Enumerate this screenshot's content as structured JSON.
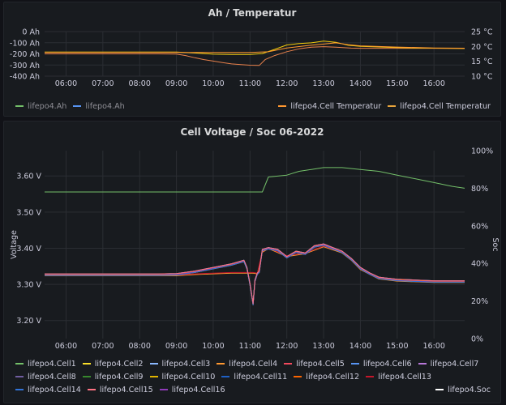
{
  "chart_data": [
    {
      "type": "line",
      "title": "Ah / Temperatur",
      "x_ticks": [
        "06:00",
        "07:00",
        "08:00",
        "09:00",
        "10:00",
        "11:00",
        "12:00",
        "13:00",
        "14:00",
        "15:00",
        "16:00"
      ],
      "x_range": [
        "05:25",
        "16:50"
      ],
      "y_left": {
        "ticks": [
          "0 Ah",
          "-100 Ah",
          "-200 Ah",
          "-300 Ah",
          "-400 Ah"
        ],
        "range": [
          -400,
          0
        ]
      },
      "y_right": {
        "ticks": [
          "25 °C",
          "20 °C",
          "15 °C",
          "10 °C"
        ],
        "range": [
          10,
          25
        ]
      },
      "series": [
        {
          "name": "lifepo4.Ah",
          "axis": "left",
          "color": "#e8814b",
          "points": [
            [
              "05:25",
              -200
            ],
            [
              "08:30",
              -200
            ],
            [
              "09:00",
              -202
            ],
            [
              "09:15",
              -215
            ],
            [
              "09:30",
              -235
            ],
            [
              "09:45",
              -252
            ],
            [
              "10:00",
              -265
            ],
            [
              "10:15",
              -278
            ],
            [
              "10:30",
              -290
            ],
            [
              "10:45",
              -297
            ],
            [
              "11:00",
              -302
            ],
            [
              "11:15",
              -304
            ],
            [
              "11:25",
              -250
            ],
            [
              "11:40",
              -215
            ],
            [
              "12:00",
              -180
            ],
            [
              "12:20",
              -155
            ],
            [
              "12:40",
              -140
            ],
            [
              "13:00",
              -135
            ],
            [
              "13:20",
              -140
            ],
            [
              "13:45",
              -148
            ],
            [
              "14:00",
              -150
            ],
            [
              "15:00",
              -150
            ],
            [
              "16:00",
              -150
            ],
            [
              "16:50",
              -150
            ]
          ]
        },
        {
          "name": "lifepo4.Cell Temperatur",
          "axis": "right",
          "color": "#f2cc0c",
          "points": [
            [
              "05:25",
              18.1
            ],
            [
              "09:00",
              18.1
            ],
            [
              "09:30",
              17.8
            ],
            [
              "10:00",
              17.4
            ],
            [
              "10:30",
              17.3
            ],
            [
              "11:00",
              17.3
            ],
            [
              "11:20",
              17.6
            ],
            [
              "11:40",
              19.0
            ],
            [
              "12:00",
              20.5
            ],
            [
              "12:20",
              21.0
            ],
            [
              "12:40",
              21.2
            ],
            [
              "13:00",
              21.8
            ],
            [
              "13:20",
              21.4
            ],
            [
              "13:40",
              20.4
            ],
            [
              "14:00",
              20.0
            ],
            [
              "15:00",
              19.6
            ],
            [
              "16:00",
              19.4
            ],
            [
              "16:50",
              19.3
            ]
          ]
        },
        {
          "name": "lifepo4.Cell Temperatur",
          "axis": "right",
          "color": "#ff9830",
          "points": [
            [
              "05:25",
              18.0
            ],
            [
              "11:00",
              18.0
            ],
            [
              "11:30",
              18.2
            ],
            [
              "12:00",
              19.5
            ],
            [
              "12:30",
              20.2
            ],
            [
              "13:00",
              20.8
            ],
            [
              "13:20",
              21.2
            ],
            [
              "13:40",
              20.6
            ],
            [
              "14:00",
              20.2
            ],
            [
              "15:00",
              19.8
            ],
            [
              "16:00",
              19.5
            ],
            [
              "16:50",
              19.4
            ]
          ]
        }
      ],
      "legend": [
        {
          "label": "lifepo4.Ah",
          "color": "#73bf69",
          "dim": true
        },
        {
          "label": "lifepo4.Ah",
          "color": "#5794f2",
          "dim": true
        },
        {
          "label": "lifepo4.Cell Temperatur",
          "color": "#ff9830",
          "dim": false
        },
        {
          "label": "lifepo4.Cell Temperatur",
          "color": "#e8a53c",
          "dim": false
        }
      ]
    },
    {
      "type": "line",
      "title": "Cell Voltage / Soc 06-2022",
      "x_ticks": [
        "06:00",
        "07:00",
        "08:00",
        "09:00",
        "10:00",
        "11:00",
        "12:00",
        "13:00",
        "14:00",
        "15:00",
        "16:00"
      ],
      "x_range": [
        "05:25",
        "16:50"
      ],
      "y_left": {
        "label": "Voltage",
        "ticks": [
          "3.60 V",
          "3.50 V",
          "3.40 V",
          "3.30 V",
          "3.20 V"
        ],
        "range": [
          3.15,
          3.67
        ]
      },
      "y_right": {
        "label": "Soc",
        "ticks": [
          "100%",
          "80%",
          "60%",
          "40%",
          "20%",
          "0%"
        ],
        "range": [
          0,
          100
        ]
      },
      "voltage_curve": [
        [
          "05:25",
          3.327
        ],
        [
          "08:30",
          3.327
        ],
        [
          "09:00",
          3.328
        ],
        [
          "09:30",
          3.335
        ],
        [
          "10:00",
          3.345
        ],
        [
          "10:30",
          3.355
        ],
        [
          "10:50",
          3.365
        ],
        [
          "10:55",
          3.345
        ],
        [
          "11:00",
          3.3
        ],
        [
          "11:05",
          3.245
        ],
        [
          "11:08",
          3.31
        ],
        [
          "11:12",
          3.33
        ],
        [
          "11:15",
          3.335
        ],
        [
          "11:20",
          3.395
        ],
        [
          "11:30",
          3.4
        ],
        [
          "11:45",
          3.395
        ],
        [
          "12:00",
          3.375
        ],
        [
          "12:15",
          3.39
        ],
        [
          "12:30",
          3.385
        ],
        [
          "12:45",
          3.405
        ],
        [
          "13:00",
          3.41
        ],
        [
          "13:15",
          3.4
        ],
        [
          "13:30",
          3.39
        ],
        [
          "13:45",
          3.37
        ],
        [
          "14:00",
          3.345
        ],
        [
          "14:15",
          3.33
        ],
        [
          "14:30",
          3.318
        ],
        [
          "14:45",
          3.315
        ],
        [
          "15:00",
          3.312
        ],
        [
          "15:30",
          3.31
        ],
        [
          "16:00",
          3.308
        ],
        [
          "16:50",
          3.308
        ]
      ],
      "voltage_curve_orange": [
        [
          "05:25",
          3.325
        ],
        [
          "09:00",
          3.325
        ],
        [
          "09:30",
          3.328
        ],
        [
          "10:00",
          3.33
        ],
        [
          "10:30",
          3.332
        ],
        [
          "11:05",
          3.332
        ],
        [
          "11:12",
          3.33
        ],
        [
          "11:20",
          3.39
        ],
        [
          "11:30",
          3.4
        ],
        [
          "12:00",
          3.378
        ],
        [
          "12:30",
          3.386
        ],
        [
          "13:00",
          3.405
        ],
        [
          "13:30",
          3.388
        ],
        [
          "13:45",
          3.368
        ],
        [
          "14:00",
          3.342
        ],
        [
          "14:30",
          3.316
        ],
        [
          "15:00",
          3.31
        ],
        [
          "16:00",
          3.306
        ],
        [
          "16:50",
          3.306
        ]
      ],
      "soc_curve": [
        [
          "05:25",
          78
        ],
        [
          "11:20",
          78
        ],
        [
          "11:30",
          86
        ],
        [
          "12:00",
          87
        ],
        [
          "12:20",
          89
        ],
        [
          "12:40",
          90
        ],
        [
          "13:00",
          91
        ],
        [
          "13:30",
          91
        ],
        [
          "14:00",
          90
        ],
        [
          "14:30",
          89
        ],
        [
          "15:00",
          87
        ],
        [
          "15:30",
          85
        ],
        [
          "16:00",
          83
        ],
        [
          "16:30",
          81
        ],
        [
          "16:50",
          80
        ]
      ],
      "series_colors": [
        "#73bf69",
        "#fade2a",
        "#8ab8ff",
        "#ff9830",
        "#f2495c",
        "#5794f2",
        "#b877d9",
        "#705da0",
        "#37872d",
        "#e0b400",
        "#1f60c4",
        "#c4162a",
        "#fa6400",
        "#8f3bb8",
        "#3274d9",
        "#ff7383"
      ],
      "legend": [
        {
          "label": "lifepo4.Cell1",
          "color": "#73bf69"
        },
        {
          "label": "lifepo4.Cell2",
          "color": "#fade2a"
        },
        {
          "label": "lifepo4.Cell3",
          "color": "#8ab8ff"
        },
        {
          "label": "lifepo4.Cell4",
          "color": "#ff9830"
        },
        {
          "label": "lifepo4.Cell5",
          "color": "#f2495c"
        },
        {
          "label": "lifepo4.Cell6",
          "color": "#5794f2"
        },
        {
          "label": "lifepo4.Cell7",
          "color": "#b877d9"
        },
        {
          "label": "lifepo4.Cell8",
          "color": "#705da0"
        },
        {
          "label": "lifepo4.Cell9",
          "color": "#37872d"
        },
        {
          "label": "lifepo4.Cell10",
          "color": "#e0b400"
        },
        {
          "label": "lifepo4.Cell11",
          "color": "#1f60c4"
        },
        {
          "label": "lifepo4.Cell12",
          "color": "#fa6400"
        },
        {
          "label": "lifepo4.Cell13",
          "color": "#c4162a"
        },
        {
          "label": "lifepo4.Cell14",
          "color": "#3274d9"
        },
        {
          "label": "lifepo4.Cell15",
          "color": "#ff7383"
        },
        {
          "label": "lifepo4.Cell16",
          "color": "#8f3bb8"
        }
      ],
      "legend_right": {
        "label": "lifepo4.Soc",
        "color": "#ffffff"
      }
    }
  ]
}
